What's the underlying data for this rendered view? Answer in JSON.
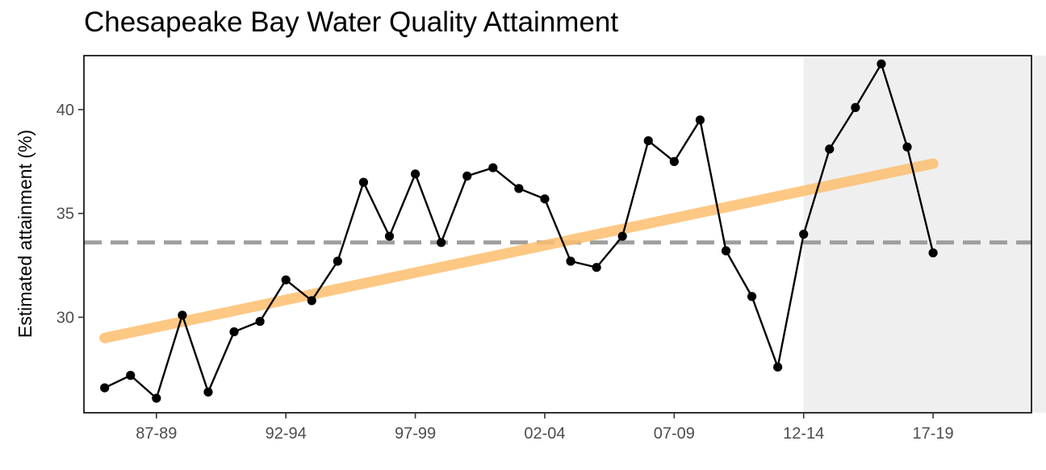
{
  "chart_data": {
    "type": "line",
    "title": "Chesapeake Bay Water Quality Attainment",
    "xlabel": "",
    "ylabel": "Estimated attainment (%)",
    "x_tick_labels": [
      "87-89",
      "92-94",
      "97-99",
      "02-04",
      "07-09",
      "12-14",
      "17-19"
    ],
    "x_tick_positions": [
      2,
      7,
      12,
      17,
      22,
      27,
      32
    ],
    "y_ticks": [
      30,
      35,
      40
    ],
    "ylim": [
      25.4,
      42.6
    ],
    "xlim": [
      -0.8,
      35.8
    ],
    "shaded_region": [
      27,
      37
    ],
    "series": [
      {
        "values": [
          {
            "x": 0,
            "y": 26.6
          },
          {
            "x": 1,
            "y": 27.2
          },
          {
            "x": 2,
            "y": 26.1
          },
          {
            "x": 3,
            "y": 30.1
          },
          {
            "x": 4,
            "y": 26.4
          },
          {
            "x": 5,
            "y": 29.3
          },
          {
            "x": 6,
            "y": 29.8
          },
          {
            "x": 7,
            "y": 31.8
          },
          {
            "x": 8,
            "y": 30.8
          },
          {
            "x": 9,
            "y": 32.7
          },
          {
            "x": 10,
            "y": 36.5
          },
          {
            "x": 11,
            "y": 33.9
          },
          {
            "x": 12,
            "y": 36.9
          },
          {
            "x": 13,
            "y": 33.6
          },
          {
            "x": 14,
            "y": 36.8
          },
          {
            "x": 15,
            "y": 37.2
          },
          {
            "x": 16,
            "y": 36.2
          },
          {
            "x": 17,
            "y": 35.7
          },
          {
            "x": 18,
            "y": 32.7
          },
          {
            "x": 19,
            "y": 32.4
          },
          {
            "x": 20,
            "y": 33.9
          },
          {
            "x": 21,
            "y": 38.5
          },
          {
            "x": 22,
            "y": 37.5
          },
          {
            "x": 23,
            "y": 39.5
          },
          {
            "x": 24,
            "y": 33.2
          },
          {
            "x": 25,
            "y": 31.0
          },
          {
            "x": 26,
            "y": 27.6
          },
          {
            "x": 27,
            "y": 34.0
          },
          {
            "x": 28,
            "y": 38.1
          },
          {
            "x": 29,
            "y": 40.1
          },
          {
            "x": 30,
            "y": 42.2
          },
          {
            "x": 31,
            "y": 38.2
          },
          {
            "x": 32,
            "y": 33.1
          }
        ],
        "color": "#000000"
      }
    ],
    "trend_line": {
      "x": [
        0,
        32
      ],
      "y": [
        29.0,
        37.4
      ],
      "color": "#fdbf6f"
    },
    "reference_line": {
      "y": 33.6,
      "color": "#999999",
      "style": "dashed"
    },
    "grid": false,
    "legend": "none"
  }
}
